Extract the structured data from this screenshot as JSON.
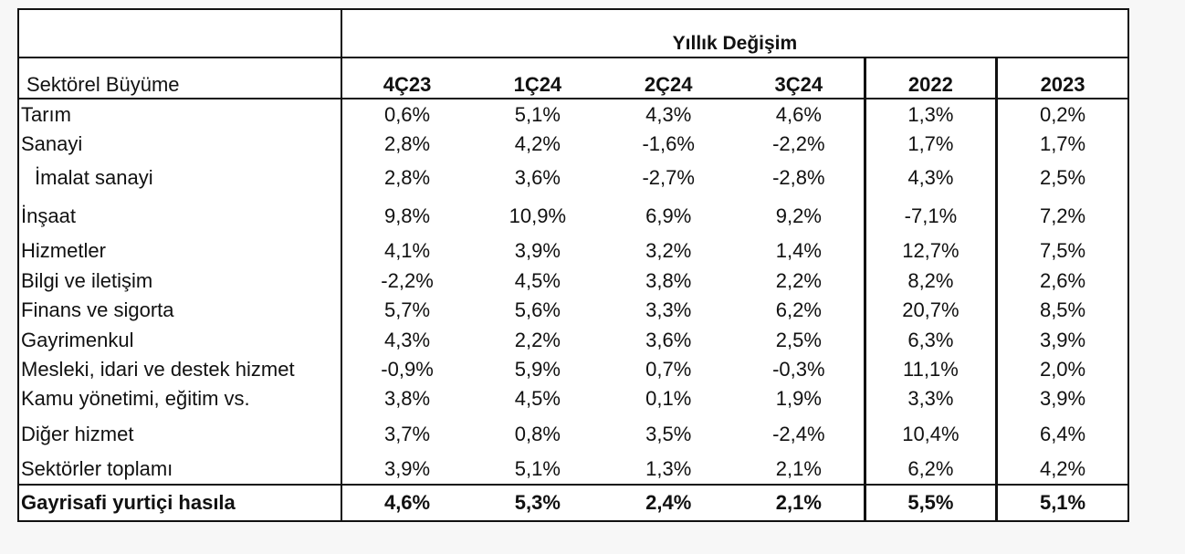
{
  "table": {
    "title": "Yıllık Değişim",
    "row_header": "Sektörel Büyüme",
    "columns": [
      "4Ç23",
      "1Ç24",
      "2Ç24",
      "3Ç24",
      "2022",
      "2023"
    ],
    "rows": [
      {
        "label": "Tarım",
        "values": [
          "0,6%",
          "5,1%",
          "4,3%",
          "4,6%",
          "1,3%",
          "0,2%"
        ]
      },
      {
        "label": "Sanayi",
        "values": [
          "2,8%",
          "4,2%",
          "-1,6%",
          "-2,2%",
          "1,7%",
          "1,7%"
        ]
      },
      {
        "label": "İmalat sanayi",
        "values": [
          "2,8%",
          "3,6%",
          "-2,7%",
          "-2,8%",
          "4,3%",
          "2,5%"
        ]
      },
      {
        "label": "İnşaat",
        "values": [
          "9,8%",
          "10,9%",
          "6,9%",
          "9,2%",
          "-7,1%",
          "7,2%"
        ]
      },
      {
        "label": "Hizmetler",
        "values": [
          "4,1%",
          "3,9%",
          "3,2%",
          "1,4%",
          "12,7%",
          "7,5%"
        ]
      },
      {
        "label": "Bilgi ve iletişim",
        "values": [
          "-2,2%",
          "4,5%",
          "3,8%",
          "2,2%",
          "8,2%",
          "2,6%"
        ]
      },
      {
        "label": "Finans ve sigorta",
        "values": [
          "5,7%",
          "5,6%",
          "3,3%",
          "6,2%",
          "20,7%",
          "8,5%"
        ]
      },
      {
        "label": "Gayrimenkul",
        "values": [
          "4,3%",
          "2,2%",
          "3,6%",
          "2,5%",
          "6,3%",
          "3,9%"
        ]
      },
      {
        "label": "Mesleki, idari ve destek hizmet",
        "values": [
          "-0,9%",
          "5,9%",
          "0,7%",
          "-0,3%",
          "11,1%",
          "2,0%"
        ]
      },
      {
        "label": "Kamu yönetimi, eğitim vs.",
        "values": [
          "3,8%",
          "4,5%",
          "0,1%",
          "1,9%",
          "3,3%",
          "3,9%"
        ]
      },
      {
        "label": "Diğer hizmet",
        "values": [
          "3,7%",
          "0,8%",
          "3,5%",
          "-2,4%",
          "10,4%",
          "6,4%"
        ]
      },
      {
        "label": "Sektörler toplamı",
        "values": [
          "3,9%",
          "5,1%",
          "1,3%",
          "2,1%",
          "6,2%",
          "4,2%"
        ]
      }
    ],
    "total": {
      "label": "Gayrisafi yurtiçi hasıla",
      "values": [
        "4,6%",
        "5,3%",
        "2,4%",
        "2,1%",
        "5,5%",
        "5,1%"
      ]
    }
  }
}
